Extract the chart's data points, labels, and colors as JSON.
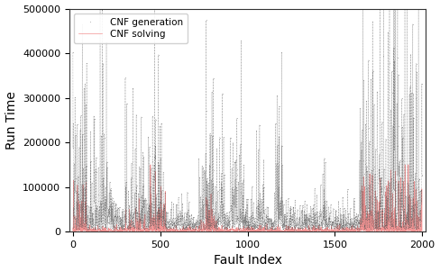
{
  "n_faults": 2000,
  "ylim": [
    0,
    500000
  ],
  "xlim": [
    -20,
    2020
  ],
  "yticks": [
    0,
    100000,
    200000,
    300000,
    400000,
    500000
  ],
  "xticks": [
    0,
    500,
    1000,
    1500,
    2000
  ],
  "xlabel": "Fault Index",
  "ylabel": "Run Time",
  "legend_labels": [
    "CNF generation",
    "CNF solving"
  ],
  "gen_color": "#555555",
  "sol_color": "#f08080",
  "background_color": "#ffffff",
  "figsize": [
    4.88,
    3.02
  ],
  "dpi": 100
}
